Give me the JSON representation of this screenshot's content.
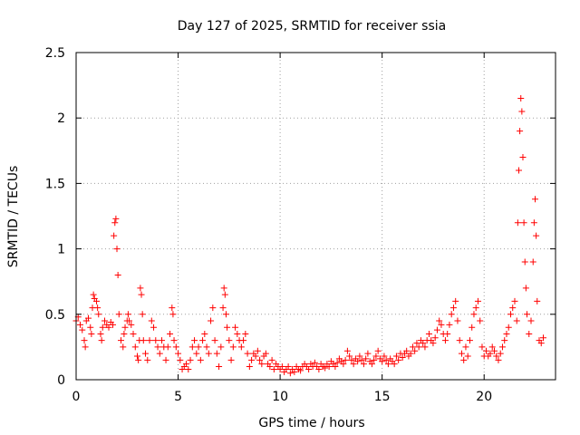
{
  "chart_data": {
    "type": "scatter",
    "title": "Day 127 of 2025, SRMTID for receiver ssia",
    "xlabel": "GPS time / hours",
    "ylabel": "SRMTID / TECUs",
    "xlim": [
      0,
      23.5
    ],
    "ylim": [
      0,
      2.5
    ],
    "xticks": [
      0,
      5,
      10,
      15,
      20
    ],
    "xtick_labels": [
      "0",
      "5",
      "10",
      "15",
      "20"
    ],
    "yticks": [
      0,
      0.5,
      1,
      1.5,
      2,
      2.5
    ],
    "ytick_labels": [
      "0",
      "0.5",
      "1",
      "1.5",
      "2",
      "2.5"
    ],
    "grid": true,
    "marker": "+",
    "color": "#ff0000",
    "series": [
      {
        "name": "SRMTID",
        "points": [
          [
            0.0,
            0.45
          ],
          [
            0.1,
            0.48
          ],
          [
            0.2,
            0.42
          ],
          [
            0.3,
            0.38
          ],
          [
            0.4,
            0.3
          ],
          [
            0.45,
            0.25
          ],
          [
            0.5,
            0.45
          ],
          [
            0.6,
            0.47
          ],
          [
            0.7,
            0.4
          ],
          [
            0.75,
            0.35
          ],
          [
            0.8,
            0.55
          ],
          [
            0.85,
            0.65
          ],
          [
            0.9,
            0.62
          ],
          [
            1.0,
            0.6
          ],
          [
            1.05,
            0.55
          ],
          [
            1.1,
            0.5
          ],
          [
            1.2,
            0.35
          ],
          [
            1.25,
            0.3
          ],
          [
            1.3,
            0.4
          ],
          [
            1.4,
            0.45
          ],
          [
            1.5,
            0.42
          ],
          [
            1.6,
            0.4
          ],
          [
            1.7,
            0.44
          ],
          [
            1.8,
            0.42
          ],
          [
            1.85,
            1.1
          ],
          [
            1.9,
            1.2
          ],
          [
            1.95,
            1.23
          ],
          [
            2.0,
            1.0
          ],
          [
            2.05,
            0.8
          ],
          [
            2.1,
            0.5
          ],
          [
            2.2,
            0.3
          ],
          [
            2.3,
            0.25
          ],
          [
            2.35,
            0.35
          ],
          [
            2.4,
            0.4
          ],
          [
            2.5,
            0.45
          ],
          [
            2.55,
            0.5
          ],
          [
            2.6,
            0.45
          ],
          [
            2.7,
            0.42
          ],
          [
            2.8,
            0.35
          ],
          [
            2.9,
            0.25
          ],
          [
            3.0,
            0.18
          ],
          [
            3.05,
            0.15
          ],
          [
            3.1,
            0.3
          ],
          [
            3.15,
            0.7
          ],
          [
            3.2,
            0.65
          ],
          [
            3.25,
            0.5
          ],
          [
            3.3,
            0.3
          ],
          [
            3.4,
            0.2
          ],
          [
            3.5,
            0.15
          ],
          [
            3.6,
            0.3
          ],
          [
            3.7,
            0.45
          ],
          [
            3.8,
            0.4
          ],
          [
            3.9,
            0.3
          ],
          [
            4.0,
            0.25
          ],
          [
            4.1,
            0.2
          ],
          [
            4.2,
            0.3
          ],
          [
            4.3,
            0.25
          ],
          [
            4.4,
            0.15
          ],
          [
            4.5,
            0.25
          ],
          [
            4.6,
            0.35
          ],
          [
            4.7,
            0.55
          ],
          [
            4.75,
            0.5
          ],
          [
            4.8,
            0.3
          ],
          [
            4.9,
            0.25
          ],
          [
            5.0,
            0.2
          ],
          [
            5.1,
            0.15
          ],
          [
            5.2,
            0.08
          ],
          [
            5.3,
            0.1
          ],
          [
            5.4,
            0.12
          ],
          [
            5.5,
            0.08
          ],
          [
            5.6,
            0.15
          ],
          [
            5.7,
            0.25
          ],
          [
            5.8,
            0.3
          ],
          [
            5.9,
            0.2
          ],
          [
            6.0,
            0.25
          ],
          [
            6.1,
            0.15
          ],
          [
            6.2,
            0.3
          ],
          [
            6.3,
            0.35
          ],
          [
            6.4,
            0.25
          ],
          [
            6.5,
            0.2
          ],
          [
            6.6,
            0.45
          ],
          [
            6.7,
            0.55
          ],
          [
            6.8,
            0.3
          ],
          [
            6.9,
            0.2
          ],
          [
            7.0,
            0.1
          ],
          [
            7.1,
            0.25
          ],
          [
            7.2,
            0.55
          ],
          [
            7.25,
            0.7
          ],
          [
            7.3,
            0.65
          ],
          [
            7.35,
            0.5
          ],
          [
            7.4,
            0.4
          ],
          [
            7.5,
            0.3
          ],
          [
            7.6,
            0.15
          ],
          [
            7.7,
            0.25
          ],
          [
            7.8,
            0.4
          ],
          [
            7.9,
            0.35
          ],
          [
            8.0,
            0.3
          ],
          [
            8.1,
            0.25
          ],
          [
            8.2,
            0.3
          ],
          [
            8.3,
            0.35
          ],
          [
            8.4,
            0.2
          ],
          [
            8.5,
            0.1
          ],
          [
            8.6,
            0.15
          ],
          [
            8.7,
            0.2
          ],
          [
            8.8,
            0.18
          ],
          [
            8.9,
            0.22
          ],
          [
            9.0,
            0.15
          ],
          [
            9.1,
            0.12
          ],
          [
            9.2,
            0.18
          ],
          [
            9.3,
            0.2
          ],
          [
            9.4,
            0.12
          ],
          [
            9.5,
            0.1
          ],
          [
            9.6,
            0.15
          ],
          [
            9.7,
            0.08
          ],
          [
            9.8,
            0.12
          ],
          [
            9.9,
            0.1
          ],
          [
            10.0,
            0.08
          ],
          [
            10.1,
            0.1
          ],
          [
            10.2,
            0.06
          ],
          [
            10.3,
            0.08
          ],
          [
            10.4,
            0.1
          ],
          [
            10.5,
            0.05
          ],
          [
            10.6,
            0.08
          ],
          [
            10.7,
            0.06
          ],
          [
            10.8,
            0.1
          ],
          [
            10.9,
            0.08
          ],
          [
            11.0,
            0.07
          ],
          [
            11.1,
            0.1
          ],
          [
            11.2,
            0.12
          ],
          [
            11.3,
            0.1
          ],
          [
            11.4,
            0.08
          ],
          [
            11.5,
            0.12
          ],
          [
            11.6,
            0.1
          ],
          [
            11.7,
            0.13
          ],
          [
            11.8,
            0.1
          ],
          [
            11.9,
            0.08
          ],
          [
            12.0,
            0.12
          ],
          [
            12.1,
            0.1
          ],
          [
            12.2,
            0.09
          ],
          [
            12.3,
            0.12
          ],
          [
            12.4,
            0.1
          ],
          [
            12.5,
            0.14
          ],
          [
            12.6,
            0.12
          ],
          [
            12.7,
            0.1
          ],
          [
            12.8,
            0.13
          ],
          [
            12.9,
            0.16
          ],
          [
            13.0,
            0.14
          ],
          [
            13.1,
            0.12
          ],
          [
            13.2,
            0.15
          ],
          [
            13.3,
            0.22
          ],
          [
            13.4,
            0.18
          ],
          [
            13.5,
            0.15
          ],
          [
            13.6,
            0.12
          ],
          [
            13.7,
            0.16
          ],
          [
            13.8,
            0.14
          ],
          [
            13.9,
            0.18
          ],
          [
            14.0,
            0.15
          ],
          [
            14.1,
            0.12
          ],
          [
            14.2,
            0.16
          ],
          [
            14.3,
            0.2
          ],
          [
            14.4,
            0.14
          ],
          [
            14.5,
            0.12
          ],
          [
            14.6,
            0.15
          ],
          [
            14.7,
            0.18
          ],
          [
            14.8,
            0.22
          ],
          [
            14.9,
            0.16
          ],
          [
            15.0,
            0.14
          ],
          [
            15.1,
            0.18
          ],
          [
            15.2,
            0.15
          ],
          [
            15.3,
            0.12
          ],
          [
            15.4,
            0.16
          ],
          [
            15.5,
            0.14
          ],
          [
            15.6,
            0.12
          ],
          [
            15.7,
            0.18
          ],
          [
            15.8,
            0.15
          ],
          [
            15.9,
            0.2
          ],
          [
            16.0,
            0.17
          ],
          [
            16.1,
            0.2
          ],
          [
            16.2,
            0.22
          ],
          [
            16.3,
            0.18
          ],
          [
            16.4,
            0.2
          ],
          [
            16.5,
            0.25
          ],
          [
            16.6,
            0.22
          ],
          [
            16.7,
            0.28
          ],
          [
            16.8,
            0.25
          ],
          [
            16.9,
            0.3
          ],
          [
            17.0,
            0.28
          ],
          [
            17.1,
            0.25
          ],
          [
            17.2,
            0.3
          ],
          [
            17.3,
            0.35
          ],
          [
            17.4,
            0.3
          ],
          [
            17.5,
            0.28
          ],
          [
            17.6,
            0.32
          ],
          [
            17.7,
            0.38
          ],
          [
            17.8,
            0.45
          ],
          [
            17.9,
            0.42
          ],
          [
            18.0,
            0.35
          ],
          [
            18.1,
            0.3
          ],
          [
            18.2,
            0.35
          ],
          [
            18.3,
            0.42
          ],
          [
            18.4,
            0.5
          ],
          [
            18.5,
            0.55
          ],
          [
            18.6,
            0.6
          ],
          [
            18.7,
            0.45
          ],
          [
            18.8,
            0.3
          ],
          [
            18.9,
            0.2
          ],
          [
            19.0,
            0.15
          ],
          [
            19.1,
            0.25
          ],
          [
            19.2,
            0.18
          ],
          [
            19.3,
            0.3
          ],
          [
            19.4,
            0.4
          ],
          [
            19.5,
            0.5
          ],
          [
            19.6,
            0.55
          ],
          [
            19.7,
            0.6
          ],
          [
            19.8,
            0.45
          ],
          [
            19.9,
            0.25
          ],
          [
            20.0,
            0.18
          ],
          [
            20.1,
            0.22
          ],
          [
            20.2,
            0.18
          ],
          [
            20.3,
            0.2
          ],
          [
            20.4,
            0.25
          ],
          [
            20.5,
            0.22
          ],
          [
            20.6,
            0.18
          ],
          [
            20.7,
            0.15
          ],
          [
            20.8,
            0.2
          ],
          [
            20.9,
            0.25
          ],
          [
            21.0,
            0.3
          ],
          [
            21.1,
            0.35
          ],
          [
            21.2,
            0.4
          ],
          [
            21.3,
            0.5
          ],
          [
            21.4,
            0.55
          ],
          [
            21.5,
            0.6
          ],
          [
            21.6,
            0.45
          ],
          [
            21.65,
            1.2
          ],
          [
            21.7,
            1.6
          ],
          [
            21.75,
            1.9
          ],
          [
            21.8,
            2.15
          ],
          [
            21.85,
            2.05
          ],
          [
            21.9,
            1.7
          ],
          [
            21.95,
            1.2
          ],
          [
            22.0,
            0.9
          ],
          [
            22.05,
            0.7
          ],
          [
            22.1,
            0.5
          ],
          [
            22.2,
            0.35
          ],
          [
            22.3,
            0.45
          ],
          [
            22.4,
            0.9
          ],
          [
            22.45,
            1.2
          ],
          [
            22.5,
            1.38
          ],
          [
            22.55,
            1.1
          ],
          [
            22.6,
            0.6
          ],
          [
            22.7,
            0.3
          ],
          [
            22.8,
            0.28
          ],
          [
            22.9,
            0.32
          ]
        ]
      }
    ]
  }
}
